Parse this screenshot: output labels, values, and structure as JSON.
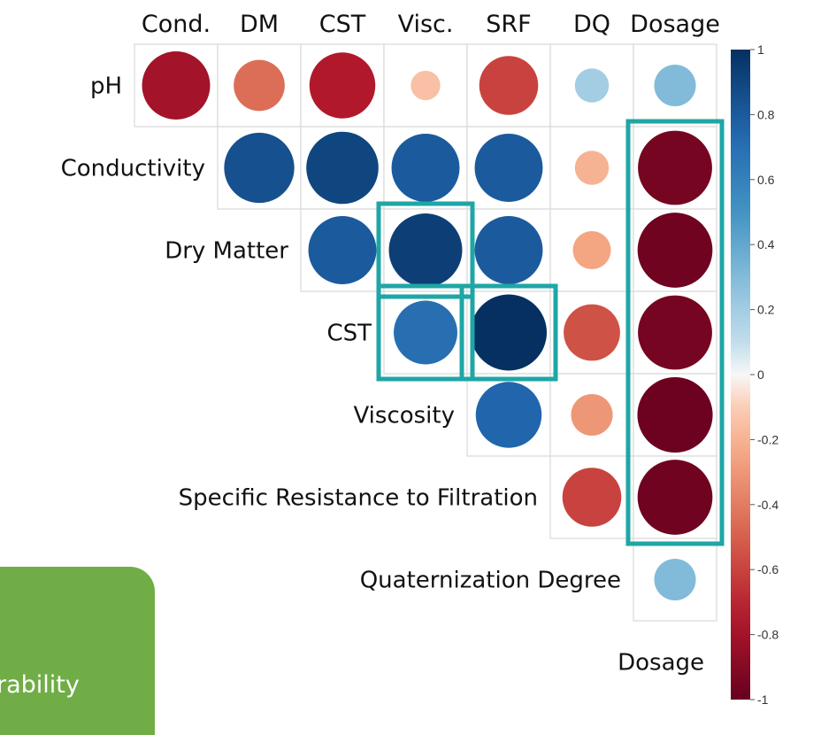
{
  "chart_data": {
    "type": "heatmap",
    "columns": [
      "Cond.",
      "DM",
      "CST",
      "Visc.",
      "SRF",
      "DQ",
      "Dosage"
    ],
    "rows": [
      "pH",
      "Conductivity",
      "Dry Matter",
      "CST",
      "Viscosity",
      "Specific Resistance to Filtration",
      "Quaternization Degree",
      "Dosage"
    ],
    "cells": [
      {
        "row": 0,
        "col": 0,
        "value": -0.8
      },
      {
        "row": 0,
        "col": 1,
        "value": -0.45
      },
      {
        "row": 0,
        "col": 2,
        "value": -0.75
      },
      {
        "row": 0,
        "col": 3,
        "value": -0.15
      },
      {
        "row": 0,
        "col": 4,
        "value": -0.6
      },
      {
        "row": 0,
        "col": 5,
        "value": 0.2
      },
      {
        "row": 0,
        "col": 6,
        "value": 0.3
      },
      {
        "row": 1,
        "col": 1,
        "value": 0.85
      },
      {
        "row": 1,
        "col": 2,
        "value": 0.9
      },
      {
        "row": 1,
        "col": 3,
        "value": 0.8
      },
      {
        "row": 1,
        "col": 4,
        "value": 0.8
      },
      {
        "row": 1,
        "col": 5,
        "value": -0.2
      },
      {
        "row": 1,
        "col": 6,
        "value": -0.95
      },
      {
        "row": 2,
        "col": 2,
        "value": 0.8
      },
      {
        "row": 2,
        "col": 3,
        "value": 0.93
      },
      {
        "row": 2,
        "col": 4,
        "value": 0.8
      },
      {
        "row": 2,
        "col": 5,
        "value": -0.25
      },
      {
        "row": 2,
        "col": 6,
        "value": -0.97
      },
      {
        "row": 3,
        "col": 3,
        "value": 0.7
      },
      {
        "row": 3,
        "col": 4,
        "value": 1.0
      },
      {
        "row": 3,
        "col": 5,
        "value": -0.55
      },
      {
        "row": 3,
        "col": 6,
        "value": -0.95
      },
      {
        "row": 4,
        "col": 4,
        "value": 0.75
      },
      {
        "row": 4,
        "col": 5,
        "value": -0.3
      },
      {
        "row": 4,
        "col": 6,
        "value": -0.98
      },
      {
        "row": 5,
        "col": 5,
        "value": -0.6
      },
      {
        "row": 5,
        "col": 6,
        "value": -0.97
      },
      {
        "row": 6,
        "col": 6,
        "value": 0.3
      }
    ],
    "highlights": [
      {
        "row_start": 1,
        "row_end": 5,
        "col_start": 6,
        "col_end": 6
      },
      {
        "row_start": 2,
        "row_end": 2,
        "col_start": 3,
        "col_end": 3
      },
      {
        "row_start": 3,
        "row_end": 3,
        "col_start": 3,
        "col_end": 3
      },
      {
        "row_start": 3,
        "row_end": 3,
        "col_start": 4,
        "col_end": 4
      }
    ],
    "colorbar": {
      "ticks": [
        "1",
        "0.8",
        "0.6",
        "0.4",
        "0.2",
        "0",
        "-0.2",
        "-0.4",
        "-0.6",
        "-0.8",
        "-1"
      ],
      "range": [
        -1,
        1
      ]
    },
    "colors": {
      "negative": "#67001f",
      "positive": "#053061",
      "neutral": "#f7f7f7",
      "highlight": "#1fa6a6"
    }
  },
  "overlay": {
    "text": "rability",
    "color": "#70ad47"
  }
}
